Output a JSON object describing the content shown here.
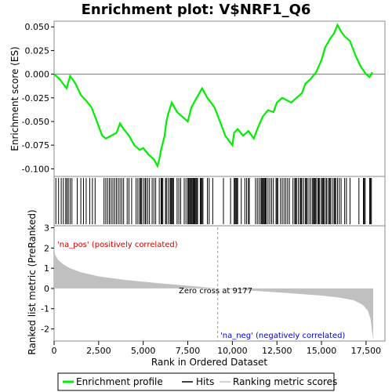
{
  "chart_data": {
    "type": "line",
    "title": "Enrichment plot: V$NRF1_Q6",
    "top_panel": {
      "ylabel": "Enrichment score (ES)",
      "ylim": [
        -0.108,
        0.056
      ],
      "yticks": [
        0.05,
        0.025,
        0.0,
        -0.025,
        -0.05,
        -0.075,
        -0.1
      ],
      "ytick_labels": [
        "0.050",
        "0.025",
        "0.000",
        "-0.025",
        "-0.050",
        "-0.075",
        "-0.100"
      ],
      "series": [
        {
          "name": "Enrichment profile",
          "color": "#00ee00",
          "x": [
            0,
            300,
            700,
            900,
            1200,
            1500,
            1800,
            2100,
            2400,
            2700,
            2900,
            3200,
            3500,
            3700,
            3900,
            4200,
            4500,
            4800,
            5000,
            5300,
            5600,
            5800,
            5900,
            6000,
            6200,
            6300,
            6400,
            6600,
            6900,
            7200,
            7500,
            7700,
            8000,
            8300,
            8600,
            9000,
            9300,
            9600,
            9800,
            10000,
            10100,
            10300,
            10600,
            10900,
            11200,
            11400,
            11700,
            12000,
            12300,
            12500,
            12800,
            13100,
            13300,
            13600,
            13900,
            14100,
            14400,
            14700,
            15000,
            15200,
            15500,
            15700,
            15900,
            16100,
            16300,
            16600,
            16900,
            17200,
            17500,
            17700,
            17850
          ],
          "values": [
            0.0,
            -0.005,
            -0.015,
            -0.002,
            -0.01,
            -0.022,
            -0.028,
            -0.035,
            -0.05,
            -0.065,
            -0.068,
            -0.065,
            -0.062,
            -0.052,
            -0.058,
            -0.065,
            -0.075,
            -0.08,
            -0.078,
            -0.085,
            -0.09,
            -0.097,
            -0.09,
            -0.08,
            -0.065,
            -0.05,
            -0.042,
            -0.03,
            -0.04,
            -0.045,
            -0.05,
            -0.035,
            -0.025,
            -0.015,
            -0.025,
            -0.035,
            -0.05,
            -0.065,
            -0.07,
            -0.075,
            -0.062,
            -0.058,
            -0.065,
            -0.06,
            -0.068,
            -0.058,
            -0.045,
            -0.038,
            -0.04,
            -0.03,
            -0.025,
            -0.028,
            -0.03,
            -0.025,
            -0.02,
            -0.01,
            -0.005,
            0.002,
            0.015,
            0.028,
            0.038,
            0.043,
            0.052,
            0.045,
            0.04,
            0.035,
            0.02,
            0.008,
            0.0,
            -0.003,
            0.002
          ]
        }
      ]
    },
    "hits_panel": {
      "hit_ranks_sample": [
        100,
        250,
        400,
        520,
        650,
        720,
        800,
        900,
        1000,
        1300,
        1500,
        1650,
        1800,
        2000,
        2150,
        2300,
        2800,
        2900,
        3000,
        3100,
        3200,
        3300,
        3400,
        3500,
        3600,
        3700,
        3800,
        3900,
        4100,
        4200,
        4350,
        4600,
        4700,
        4800,
        4850,
        4900,
        5000,
        5100,
        5150,
        5250,
        5350,
        5500,
        5600,
        5700,
        5900,
        6000,
        6050,
        6100,
        6250,
        6300,
        6400,
        6500,
        6550,
        6600,
        6650,
        6700,
        6900,
        7000,
        7100,
        7300,
        7400,
        7500,
        7550,
        7600,
        7650,
        7700,
        7750,
        7800,
        7850,
        7900,
        7950,
        8000,
        8050,
        8200,
        8250,
        8300,
        8350,
        8600,
        8700,
        8900,
        9500,
        9900,
        10100,
        10150,
        10200,
        10250,
        10300,
        10500,
        10700,
        10800,
        10900,
        10950,
        11300,
        11400,
        11500,
        11600,
        11650,
        11700,
        11750,
        11800,
        11850,
        11900,
        12000,
        12100,
        12200,
        12300,
        12450,
        12500,
        12550,
        12700,
        12800,
        12900,
        13000,
        13100,
        13200,
        13400,
        13500,
        13550,
        13600,
        13700,
        13800,
        13850,
        13900,
        14000,
        14100,
        14150,
        14200,
        14300,
        14400,
        14500,
        14550,
        14600,
        14650,
        14700,
        14800,
        14850,
        14900,
        15000,
        15050,
        15100,
        15150,
        15250,
        15300,
        15400,
        15450,
        15500,
        15600,
        15700,
        15750,
        15800,
        15900,
        16000,
        16100,
        16300,
        16400,
        16600,
        17100,
        17350,
        17400,
        17450,
        17700,
        17750,
        17800
      ]
    },
    "metric_panel": {
      "ylabel": "Ranked list metric (PreRanked)",
      "ylim": [
        -2.6,
        3.1
      ],
      "yticks": [
        3,
        2,
        1,
        0,
        -1,
        -2
      ],
      "ytick_labels": [
        "3",
        "2",
        "1",
        "0",
        "-1",
        "-2"
      ],
      "curve_x": [
        0,
        50,
        200,
        500,
        900,
        1500,
        2500,
        4000,
        6000,
        8000,
        9177,
        11000,
        13000,
        15000,
        16000,
        16800,
        17300,
        17600,
        17750,
        17850,
        17900
      ],
      "curve_y": [
        2.1,
        1.7,
        1.45,
        1.2,
        1.0,
        0.8,
        0.6,
        0.42,
        0.25,
        0.1,
        0.0,
        -0.1,
        -0.22,
        -0.35,
        -0.45,
        -0.58,
        -0.8,
        -1.1,
        -1.5,
        -2.2,
        -2.55
      ],
      "pos_label": "'na_pos' (positively correlated)",
      "neg_label": "'na_neg' (negatively correlated)",
      "zero_cross_label": "Zero cross at 9177",
      "zero_cross": 9177
    },
    "xlabel": "Rank in Ordered Dataset",
    "xlim": [
      0,
      17900
    ],
    "xticks": [
      0,
      2500,
      5000,
      7500,
      10000,
      12500,
      15000,
      17500
    ],
    "xtick_labels": [
      "0",
      "2,500",
      "5,000",
      "7,500",
      "10,000",
      "12,500",
      "15,000",
      "17,500"
    ],
    "legend": {
      "placement": "bottom",
      "items": [
        {
          "label": "Enrichment profile",
          "color": "#00ee00"
        },
        {
          "label": "Hits",
          "color": "#000000"
        },
        {
          "label": "Ranking metric scores",
          "color": "#c0c0c0"
        }
      ]
    }
  }
}
